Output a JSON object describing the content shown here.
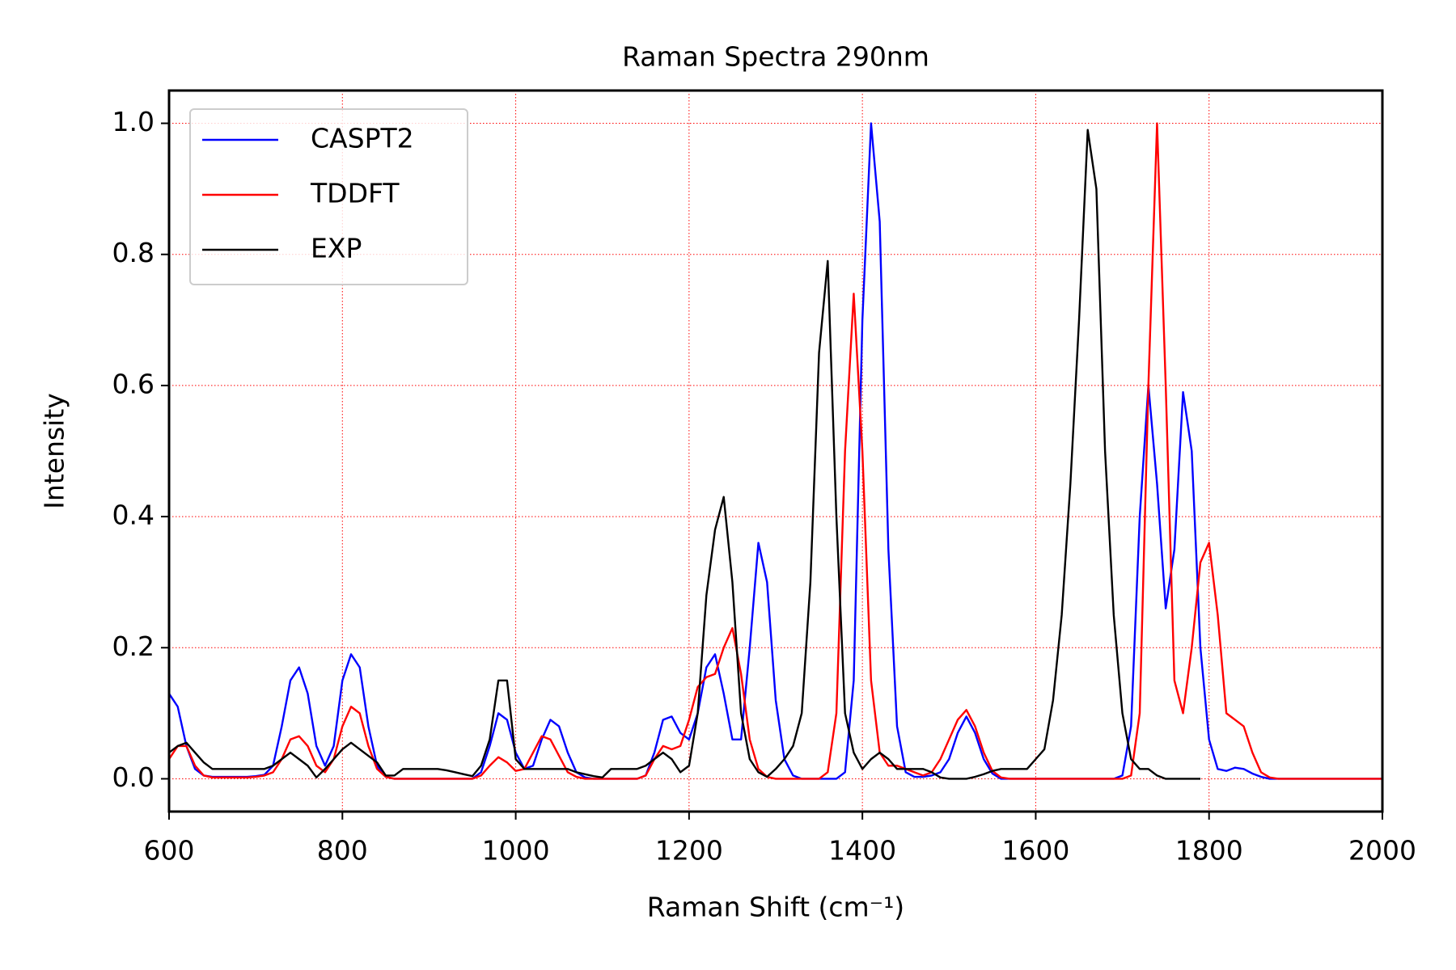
{
  "chart_data": {
    "type": "line",
    "title": "Raman Spectra 290nm",
    "x_label": "Raman Shift (cm⁻¹)",
    "y_label": "Intensity",
    "x": [
      600,
      610,
      620,
      630,
      640,
      650,
      660,
      670,
      680,
      690,
      700,
      710,
      720,
      730,
      740,
      750,
      760,
      770,
      780,
      790,
      800,
      810,
      820,
      830,
      840,
      850,
      860,
      870,
      880,
      890,
      900,
      910,
      920,
      930,
      940,
      950,
      960,
      970,
      980,
      990,
      1000,
      1010,
      1020,
      1030,
      1040,
      1050,
      1060,
      1070,
      1080,
      1090,
      1100,
      1110,
      1120,
      1130,
      1140,
      1150,
      1160,
      1170,
      1180,
      1190,
      1200,
      1210,
      1220,
      1230,
      1240,
      1250,
      1260,
      1270,
      1280,
      1290,
      1300,
      1310,
      1320,
      1330,
      1340,
      1350,
      1360,
      1370,
      1380,
      1390,
      1400,
      1410,
      1420,
      1430,
      1440,
      1450,
      1460,
      1470,
      1480,
      1490,
      1500,
      1510,
      1520,
      1530,
      1540,
      1550,
      1560,
      1570,
      1580,
      1590,
      1600,
      1610,
      1620,
      1630,
      1640,
      1650,
      1660,
      1670,
      1680,
      1690,
      1700,
      1710,
      1720,
      1730,
      1740,
      1750,
      1760,
      1770,
      1780,
      1790,
      1800,
      1810,
      1820,
      1830,
      1840,
      1850,
      1860,
      1870,
      1880,
      2000
    ],
    "series": [
      {
        "name": "CASPT2",
        "color": "#0000ff",
        "values": [
          0.13,
          0.11,
          0.05,
          0.015,
          0.005,
          0.003,
          0.003,
          0.003,
          0.003,
          0.003,
          0.004,
          0.006,
          0.02,
          0.08,
          0.15,
          0.17,
          0.13,
          0.05,
          0.02,
          0.05,
          0.15,
          0.19,
          0.17,
          0.08,
          0.02,
          0.003,
          0,
          0,
          0,
          0,
          0,
          0,
          0,
          0,
          0,
          0,
          0.01,
          0.05,
          0.1,
          0.09,
          0.04,
          0.015,
          0.02,
          0.06,
          0.09,
          0.08,
          0.04,
          0.01,
          0.002,
          0,
          0,
          0,
          0,
          0,
          0,
          0.005,
          0.04,
          0.09,
          0.095,
          0.07,
          0.06,
          0.1,
          0.17,
          0.19,
          0.13,
          0.06,
          0.06,
          0.2,
          0.36,
          0.3,
          0.12,
          0.03,
          0.005,
          0,
          0,
          0,
          0,
          0,
          0.01,
          0.15,
          0.7,
          1.0,
          0.85,
          0.35,
          0.08,
          0.01,
          0.003,
          0.003,
          0.005,
          0.01,
          0.03,
          0.07,
          0.095,
          0.07,
          0.03,
          0.008,
          0,
          0,
          0,
          0,
          0,
          0,
          0,
          0,
          0,
          0,
          0,
          0,
          0,
          0,
          0.005,
          0.08,
          0.4,
          0.6,
          0.45,
          0.26,
          0.35,
          0.59,
          0.5,
          0.2,
          0.06,
          0.015,
          0.012,
          0.017,
          0.015,
          0.008,
          0.003,
          0,
          0,
          0
        ]
      },
      {
        "name": "TDDFT",
        "color": "#ff0000",
        "values": [
          0.03,
          0.05,
          0.05,
          0.02,
          0.005,
          0.002,
          0.002,
          0.002,
          0.002,
          0.002,
          0.003,
          0.005,
          0.01,
          0.03,
          0.06,
          0.065,
          0.05,
          0.02,
          0.01,
          0.03,
          0.08,
          0.11,
          0.1,
          0.05,
          0.015,
          0.003,
          0,
          0,
          0,
          0,
          0,
          0,
          0,
          0,
          0,
          0,
          0.005,
          0.02,
          0.033,
          0.025,
          0.012,
          0.015,
          0.04,
          0.065,
          0.06,
          0.035,
          0.01,
          0.003,
          0,
          0,
          0,
          0,
          0,
          0,
          0,
          0.005,
          0.03,
          0.05,
          0.045,
          0.05,
          0.09,
          0.14,
          0.155,
          0.16,
          0.2,
          0.23,
          0.16,
          0.06,
          0.015,
          0.003,
          0,
          0,
          0,
          0,
          0,
          0,
          0.01,
          0.1,
          0.5,
          0.74,
          0.5,
          0.15,
          0.04,
          0.02,
          0.02,
          0.015,
          0.01,
          0.005,
          0.01,
          0.03,
          0.06,
          0.09,
          0.105,
          0.08,
          0.04,
          0.012,
          0.002,
          0,
          0,
          0,
          0,
          0,
          0,
          0,
          0,
          0,
          0,
          0,
          0,
          0,
          0,
          0.005,
          0.1,
          0.6,
          1.0,
          0.6,
          0.15,
          0.1,
          0.2,
          0.33,
          0.36,
          0.25,
          0.1,
          0.09,
          0.08,
          0.04,
          0.01,
          0.002,
          0,
          0
        ]
      },
      {
        "name": "EXP",
        "color": "#000000",
        "values": [
          0.04,
          0.05,
          0.055,
          0.04,
          0.025,
          0.015,
          0.015,
          0.015,
          0.015,
          0.015,
          0.015,
          0.015,
          0.02,
          0.03,
          0.04,
          0.03,
          0.02,
          0.002,
          0.015,
          0.03,
          0.045,
          0.055,
          0.045,
          0.035,
          0.025,
          0.005,
          0.005,
          0.015,
          0.015,
          0.015,
          0.015,
          0.015,
          0.013,
          0.01,
          0.007,
          0.004,
          0.02,
          0.06,
          0.15,
          0.15,
          0.03,
          0.015,
          0.015,
          0.015,
          0.015,
          0.015,
          0.015,
          0.01,
          0.007,
          0.004,
          0.002,
          0.015,
          0.015,
          0.015,
          0.015,
          0.02,
          0.03,
          0.04,
          0.03,
          0.01,
          0.02,
          0.1,
          0.28,
          0.38,
          0.43,
          0.3,
          0.1,
          0.03,
          0.01,
          0.003,
          0.015,
          0.03,
          0.05,
          0.1,
          0.3,
          0.65,
          0.79,
          0.4,
          0.1,
          0.04,
          0.015,
          0.03,
          0.04,
          0.03,
          0.015,
          0.015,
          0.015,
          0.015,
          0.01,
          0.002,
          0,
          0,
          0,
          0.003,
          0.007,
          0.012,
          0.015,
          0.015,
          0.015,
          0.015,
          0.03,
          0.045,
          0.12,
          0.25,
          0.45,
          0.7,
          0.99,
          0.9,
          0.5,
          0.25,
          0.1,
          0.03,
          0.015,
          0.015,
          0.005,
          0,
          0,
          0,
          0,
          0,
          null,
          null,
          null,
          null,
          null,
          null,
          null,
          null,
          null,
          null
        ]
      }
    ],
    "xlim": [
      600,
      2000
    ],
    "xticks": [
      600,
      800,
      1000,
      1200,
      1400,
      1600,
      1800,
      2000
    ],
    "ylim": [
      -0.05,
      1.05
    ],
    "yticks": [
      {
        "value": 0,
        "label": "0.0"
      },
      0.2,
      0.4,
      0.6,
      0.8,
      {
        "value": 1,
        "label": "1.0"
      }
    ],
    "grid": true,
    "grid_color": "#ff0000",
    "legend": "upper left"
  }
}
